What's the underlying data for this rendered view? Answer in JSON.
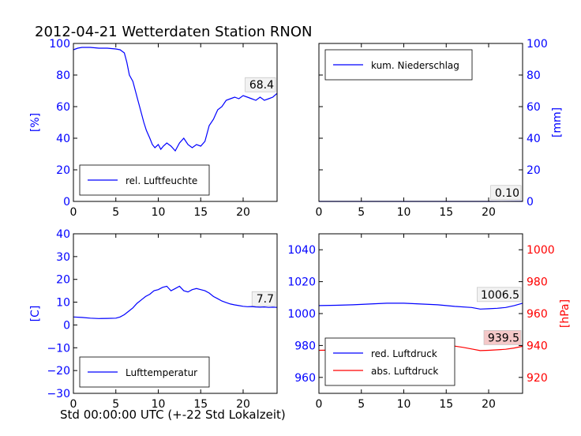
{
  "title": "2012-04-21 Wetterdaten Station RNON",
  "xcaption": "Std 00:00:00 UTC (+-22 Std Lokalzeit)",
  "colors": {
    "blue": "#0000ff",
    "red": "#ff0000",
    "axis": "#000000"
  },
  "chart_data": [
    {
      "id": "humidity",
      "type": "line",
      "xlim": [
        0,
        24
      ],
      "xticks": [
        0,
        5,
        10,
        15,
        20
      ],
      "ylim": [
        0,
        100
      ],
      "yticks": [
        0,
        20,
        40,
        60,
        80,
        100
      ],
      "ylabel": "[%]",
      "ytick_color": "blue",
      "legend": "lower-left",
      "series": [
        {
          "name": "rel. Luftfeuchte",
          "color": "blue",
          "x": [
            0,
            0.5,
            1,
            2,
            3,
            4,
            5,
            5.5,
            6,
            6.3,
            6.6,
            7,
            7.3,
            7.6,
            8,
            8.3,
            8.6,
            9,
            9.3,
            9.6,
            10,
            10.3,
            10.6,
            11,
            11.5,
            12,
            12.5,
            13,
            13.5,
            14,
            14.5,
            15,
            15.5,
            16,
            16.5,
            17,
            17.5,
            18,
            18.5,
            19,
            19.5,
            20,
            20.5,
            21,
            21.5,
            22,
            22.5,
            23,
            23.5,
            24
          ],
          "y": [
            96,
            97,
            97.5,
            97.5,
            97,
            97,
            96.5,
            96,
            94,
            88,
            80,
            76,
            70,
            64,
            56,
            50,
            45,
            40,
            36,
            34,
            36,
            33,
            35,
            37,
            35,
            32,
            37,
            40,
            36,
            34,
            36,
            35,
            38,
            48,
            52,
            58,
            60,
            64,
            65,
            66,
            65,
            67,
            66,
            65,
            64,
            66,
            64,
            65,
            66,
            68.4
          ]
        }
      ],
      "annotation": {
        "text": "68.4",
        "x": 24,
        "y": 68.4
      }
    },
    {
      "id": "precipitation",
      "type": "line",
      "xlim": [
        0,
        24
      ],
      "xticks": [
        0,
        5,
        10,
        15,
        20
      ],
      "ylim": [
        0,
        100
      ],
      "yticks": [
        0,
        20,
        40,
        60,
        80,
        100
      ],
      "ylabel": "[mm]",
      "ytick_color": "blue",
      "legend": "upper-left",
      "series": [
        {
          "name": "kum. Niederschlag",
          "color": "blue",
          "x": [
            0,
            20,
            24
          ],
          "y": [
            0,
            0,
            0.1
          ]
        }
      ],
      "annotation": {
        "text": "0.10",
        "x": 24,
        "y": 0.1
      }
    },
    {
      "id": "temperature",
      "type": "line",
      "xlim": [
        0,
        24
      ],
      "xticks": [
        0,
        5,
        10,
        15,
        20
      ],
      "ylim": [
        -30,
        40
      ],
      "yticks": [
        -30,
        -20,
        -10,
        0,
        10,
        20,
        30,
        40
      ],
      "ylabel": "[C]",
      "ytick_color": "blue",
      "legend": "lower-left",
      "series": [
        {
          "name": "Lufttemperatur",
          "color": "blue",
          "x": [
            0,
            1,
            2,
            3,
            4,
            5,
            5.5,
            6,
            6.5,
            7,
            7.5,
            8,
            8.5,
            9,
            9.5,
            10,
            10.5,
            11,
            11.5,
            12,
            12.5,
            13,
            13.5,
            14,
            14.5,
            15,
            15.5,
            16,
            16.5,
            17,
            17.5,
            18,
            18.5,
            19,
            19.5,
            20,
            20.5,
            21,
            21.5,
            22,
            22.5,
            23,
            23.5,
            24
          ],
          "y": [
            3.5,
            3.3,
            3,
            2.8,
            2.9,
            3,
            3.5,
            4.5,
            6,
            7.5,
            9.5,
            11,
            12.5,
            13.5,
            15,
            15.5,
            16.5,
            17,
            15,
            16,
            17,
            15,
            14.5,
            15.5,
            16,
            15.5,
            15,
            14,
            12.5,
            11.5,
            10.5,
            9.8,
            9.2,
            8.8,
            8.5,
            8.2,
            8,
            8.1,
            7.9,
            7.8,
            7.9,
            7.7,
            7.8,
            7.7
          ]
        }
      ],
      "annotation": {
        "text": "7.7",
        "x": 24,
        "y": 7.7
      }
    },
    {
      "id": "pressure",
      "type": "line",
      "xlim": [
        0,
        24
      ],
      "xticks": [
        0,
        5,
        10,
        15,
        20
      ],
      "ylim": [
        950,
        1050
      ],
      "yticks": [
        960,
        980,
        1000,
        1020,
        1040
      ],
      "ytick_color": "blue",
      "y2lim": [
        910,
        1010
      ],
      "y2ticks": [
        920,
        940,
        960,
        980,
        1000
      ],
      "y2label": "[hPa]",
      "y2tick_color": "red",
      "legend": "lower-left",
      "series": [
        {
          "name": "red. Luftdruck",
          "color": "blue",
          "axis": "left",
          "x": [
            0,
            2,
            4,
            6,
            8,
            10,
            12,
            14,
            16,
            18,
            19,
            20,
            21,
            22,
            23,
            24
          ],
          "y": [
            1005,
            1005.2,
            1005.5,
            1006,
            1006.5,
            1006.5,
            1006,
            1005.5,
            1004.5,
            1003.8,
            1002.8,
            1003,
            1003.3,
            1003.8,
            1005,
            1006.5
          ]
        },
        {
          "name": "abs. Luftdruck",
          "color": "red",
          "axis": "right",
          "x": [
            0,
            2,
            4,
            5,
            6,
            7,
            8,
            9,
            10,
            11,
            12,
            13,
            14,
            15,
            16,
            17,
            18,
            19,
            20,
            21,
            22,
            23,
            24
          ],
          "y": [
            937,
            937.2,
            937.5,
            937.8,
            938.2,
            939,
            940,
            940.8,
            941.2,
            941.3,
            940.6,
            940.6,
            940.4,
            940,
            939.6,
            938.8,
            937.8,
            936.8,
            937,
            937.3,
            937.6,
            938.4,
            939.5
          ]
        }
      ],
      "annotation": {
        "text": "1006.5",
        "x": 24,
        "y": 1006.5,
        "axis": "left"
      },
      "annotation2": {
        "text": "939.5",
        "x": 24,
        "y": 939.5,
        "axis": "right"
      }
    }
  ]
}
